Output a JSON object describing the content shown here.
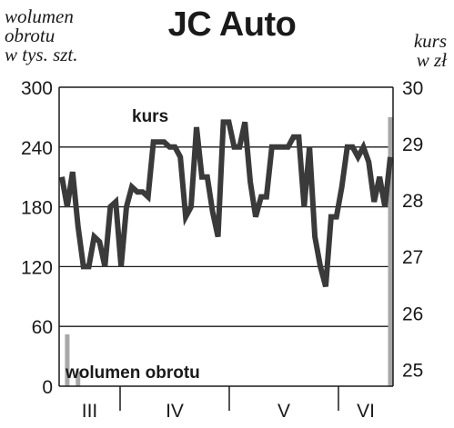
{
  "chart_data": {
    "type": "line",
    "title": "JC Auto",
    "ylabel_left": "wolumen\nobrotu\nw tys. szt.",
    "ylabel_right": "kurs\nw zł",
    "left_axis": {
      "ylim": [
        0,
        300
      ],
      "ticks": [
        "300",
        "240",
        "180",
        "120",
        "60",
        "0"
      ]
    },
    "right_axis": {
      "ylim": [
        24.7,
        30
      ],
      "ticks": [
        "30",
        "29",
        "28",
        "27",
        "26",
        "25"
      ]
    },
    "months": [
      "III",
      "IV",
      "V",
      "VI"
    ],
    "grid": true,
    "series": [
      {
        "name": "kurs",
        "axis": "left",
        "color": "#3a3a3a",
        "values": [
          210,
          180,
          215,
          160,
          120,
          120,
          150,
          145,
          120,
          180,
          185,
          120,
          180,
          200,
          195,
          195,
          190,
          245,
          245,
          245,
          240,
          240,
          230,
          170,
          180,
          260,
          210,
          210,
          175,
          150,
          265,
          265,
          240,
          240,
          265,
          205,
          170,
          190,
          190,
          240,
          240,
          240,
          240,
          250,
          250,
          180,
          240,
          150,
          120,
          100,
          170,
          170,
          200,
          240,
          240,
          230,
          240,
          225,
          185,
          210,
          180,
          230
        ]
      },
      {
        "name": "wolumen obrotu",
        "axis": "left",
        "color": "#a8a8a8",
        "values": [
          0,
          52,
          0,
          15,
          0,
          0,
          0,
          0,
          0,
          0,
          0,
          0,
          0,
          0,
          0,
          0,
          0,
          0,
          0,
          0,
          0,
          0,
          0,
          0,
          0,
          0,
          0,
          0,
          0,
          0,
          0,
          0,
          0,
          0,
          0,
          0,
          0,
          0,
          0,
          0,
          0,
          0,
          0,
          0,
          0,
          0,
          0,
          0,
          0,
          0,
          0,
          0,
          0,
          0,
          0,
          0,
          0,
          0,
          0,
          0,
          0,
          270
        ]
      }
    ]
  }
}
